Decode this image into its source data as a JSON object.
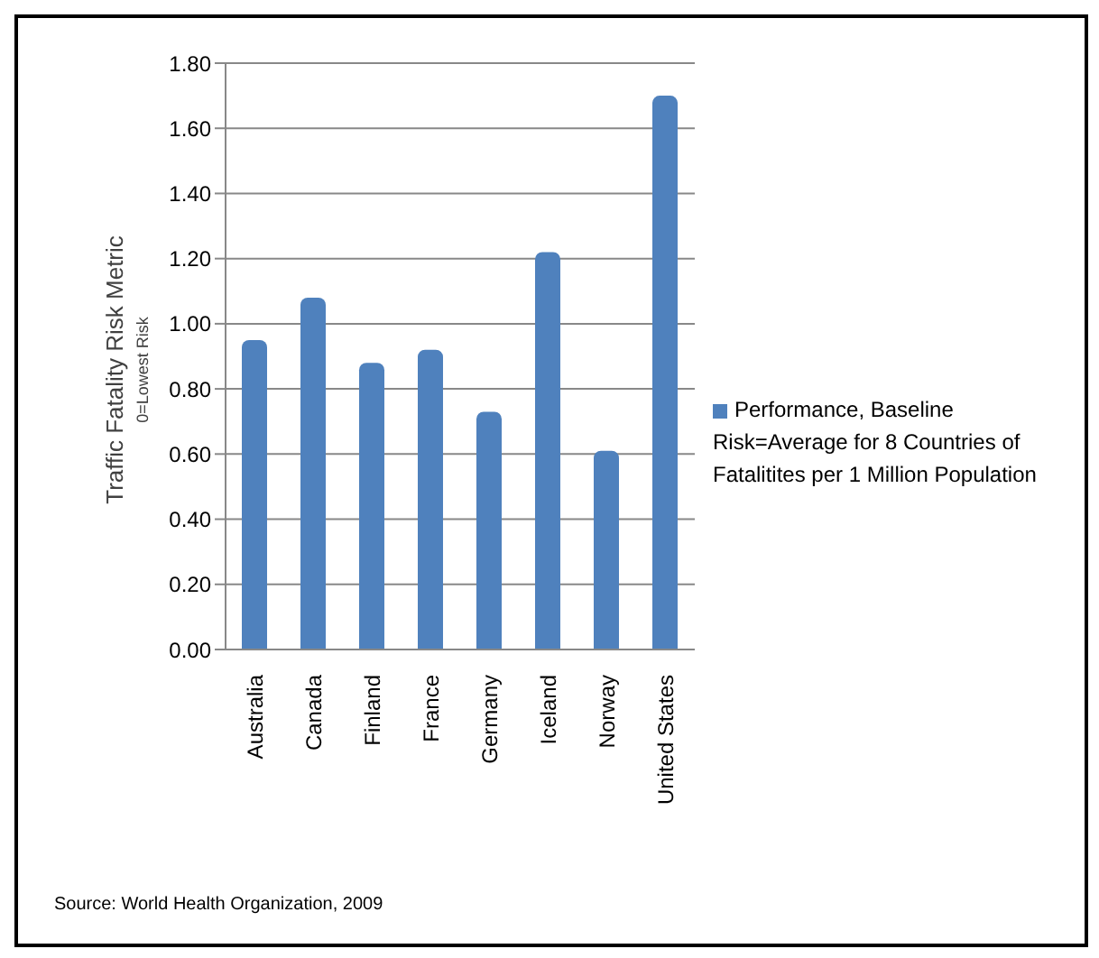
{
  "chart_data": {
    "type": "bar",
    "ylabel": "Traffic Fatality Risk Metric\n0=Lowest Risk",
    "categories": [
      "Australia",
      "Canada",
      "Finland",
      "France",
      "Germany",
      "Iceland",
      "Norway",
      "United States"
    ],
    "series": [
      {
        "name": "Performance, Baseline Risk=Average for 8 Countries of Fatalitites per 1 Million Population",
        "color": "#4f81bd",
        "values": [
          0.95,
          1.08,
          0.88,
          0.92,
          0.73,
          1.22,
          0.61,
          1.7
        ]
      }
    ],
    "ylim": [
      0,
      1.8
    ],
    "yticks": [
      {
        "value": 0,
        "label": "0.00"
      },
      {
        "value": 0.2,
        "label": "0.20"
      },
      {
        "value": 0.4,
        "label": "0.40"
      },
      {
        "value": 0.6,
        "label": "0.60"
      },
      {
        "value": 0.8,
        "label": "0.80"
      },
      {
        "value": 1,
        "label": "1.00"
      },
      {
        "value": 1.2,
        "label": "1.20"
      },
      {
        "value": 1.4,
        "label": "1.40"
      },
      {
        "value": 1.6,
        "label": "1.60"
      },
      {
        "value": 1.8,
        "label": "1.80"
      }
    ],
    "grid": "y",
    "legend": "right",
    "annotations": [
      "Source: World Health Organization, 2009"
    ]
  }
}
